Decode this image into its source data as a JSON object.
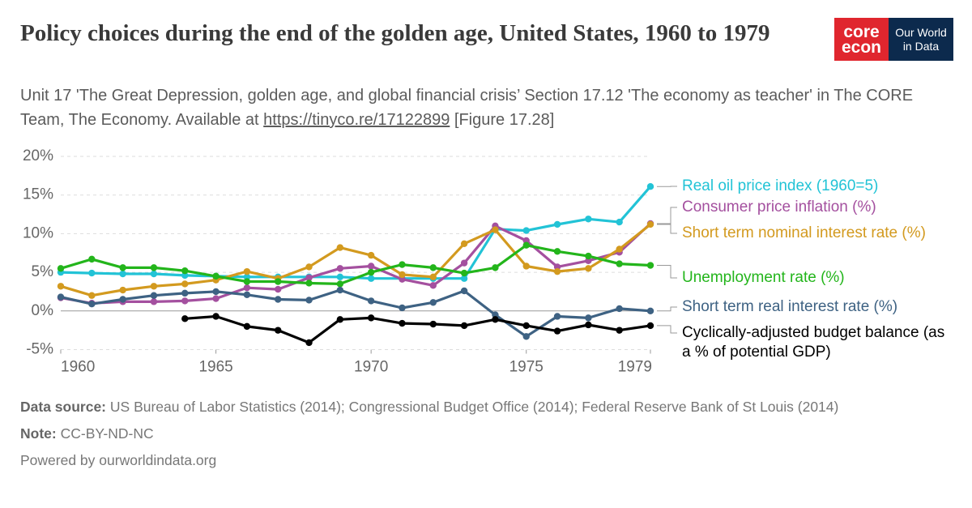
{
  "header": {
    "title": "Policy choices during the end of the golden age, United States, 1960 to 1979",
    "subtitle": [
      "Unit 17 'The Great Depression, golden age, and global financial crisis’ Section 17.12 'The economy as teacher' in The CORE Team, The Economy. Available at",
      "https://tinyco.re/17122899",
      "[Figure 17.28]"
    ]
  },
  "logos": {
    "core": [
      "core",
      "econ"
    ],
    "owid": [
      "Our World",
      "in Data"
    ]
  },
  "chart_data": {
    "type": "line",
    "x": [
      1960,
      1961,
      1962,
      1963,
      1964,
      1965,
      1966,
      1967,
      1968,
      1969,
      1970,
      1971,
      1972,
      1973,
      1974,
      1975,
      1976,
      1977,
      1978,
      1979
    ],
    "xlim": [
      1960,
      1979
    ],
    "xticks": [
      1960,
      1965,
      1970,
      1975,
      1979
    ],
    "ylim": [
      -5,
      20
    ],
    "yticks": [
      {
        "value": -5,
        "label": "-5%"
      },
      {
        "value": 0,
        "label": "0%"
      },
      {
        "value": 5,
        "label": "5%"
      },
      {
        "value": 10,
        "label": "10%"
      },
      {
        "value": 15,
        "label": "15%"
      },
      {
        "value": 20,
        "label": "20%"
      }
    ],
    "grid": true,
    "series": [
      {
        "name": "Real oil price index (1960=5)",
        "color": "#22c3d6",
        "values": [
          5.0,
          4.9,
          4.8,
          4.8,
          4.6,
          4.5,
          4.4,
          4.4,
          4.4,
          4.4,
          4.2,
          4.2,
          4.2,
          4.2,
          10.6,
          10.4,
          11.2,
          11.9,
          11.5,
          16.1
        ]
      },
      {
        "name": "Consumer price inflation (%)",
        "color": "#a4509f",
        "values": [
          1.7,
          1.0,
          1.2,
          1.2,
          1.3,
          1.6,
          3.0,
          2.8,
          4.3,
          5.5,
          5.8,
          4.1,
          3.3,
          6.2,
          11.0,
          9.1,
          5.7,
          6.5,
          7.6,
          11.3
        ]
      },
      {
        "name": "Short term nominal interest rate (%)",
        "color": "#d39a1f",
        "values": [
          3.2,
          2.0,
          2.7,
          3.2,
          3.5,
          4.0,
          5.1,
          4.2,
          5.7,
          8.2,
          7.2,
          4.7,
          4.4,
          8.7,
          10.5,
          5.8,
          5.1,
          5.5,
          8.0,
          11.2
        ]
      },
      {
        "name": "Unemployment rate (%)",
        "color": "#23b51b",
        "values": [
          5.5,
          6.7,
          5.6,
          5.6,
          5.2,
          4.5,
          3.8,
          3.8,
          3.6,
          3.5,
          5.0,
          6.0,
          5.6,
          4.9,
          5.6,
          8.5,
          7.7,
          7.1,
          6.1,
          5.9
        ]
      },
      {
        "name": "Short term real interest rate (%)",
        "color": "#3e6283",
        "values": [
          1.8,
          0.9,
          1.5,
          2.0,
          2.3,
          2.5,
          2.1,
          1.5,
          1.4,
          2.7,
          1.3,
          0.4,
          1.1,
          2.6,
          -0.5,
          -3.3,
          -0.7,
          -0.9,
          0.3,
          0.0
        ]
      },
      {
        "name": "Cyclically-adjusted budget balance (as a % of potential GDP)",
        "color": "#000000",
        "values": [
          null,
          null,
          null,
          null,
          -1.0,
          -0.7,
          -2.0,
          -2.5,
          -4.1,
          -1.1,
          -0.9,
          -1.6,
          -1.7,
          -1.9,
          -1.1,
          -1.9,
          -2.6,
          -1.8,
          -2.5,
          -1.9
        ]
      }
    ]
  },
  "footer": {
    "data_source_label": "Data source:",
    "data_source": "US Bureau of Labor Statistics (2014); Congressional Budget Office (2014); Federal Reserve Bank of St Louis (2014)",
    "note_label": "Note:",
    "note": "CC-BY-ND-NC",
    "powered": "Powered by ourworldindata.org"
  }
}
